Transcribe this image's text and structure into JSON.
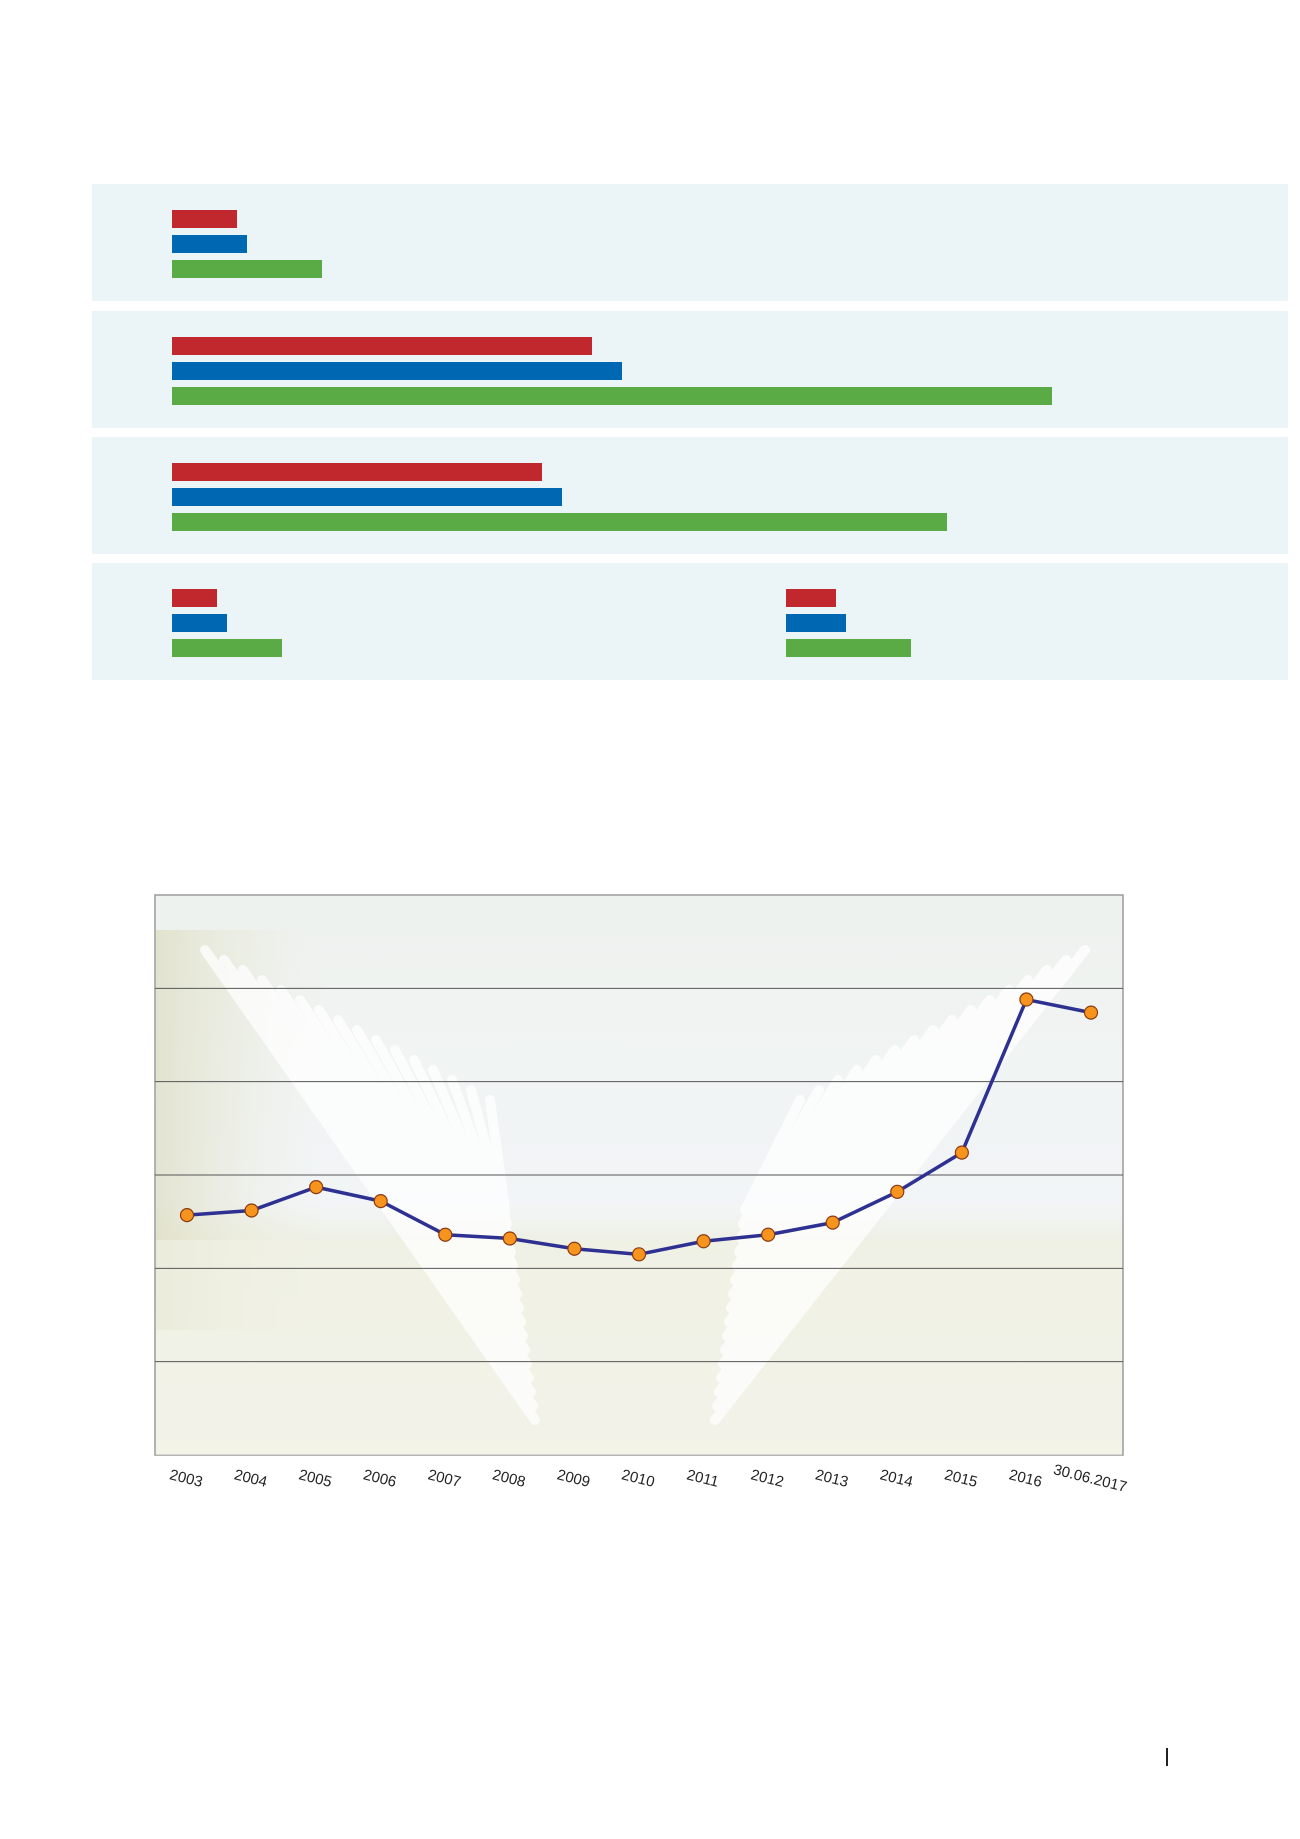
{
  "chart_data": [
    {
      "type": "bar",
      "orientation": "horizontal",
      "colors": [
        "#c0282d",
        "#0068b2",
        "#5aaa46"
      ],
      "panel_color": "#ebf5f8",
      "panels": [
        {
          "groups": [
            {
              "values": [
                65,
                75,
                150
              ]
            }
          ]
        },
        {
          "groups": [
            {
              "values": [
                420,
                450,
                880
              ]
            }
          ]
        },
        {
          "groups": [
            {
              "values": [
                370,
                390,
                775
              ]
            }
          ]
        },
        {
          "groups": [
            {
              "values": [
                45,
                55,
                110
              ]
            },
            {
              "values": [
                50,
                60,
                125
              ]
            }
          ]
        }
      ]
    },
    {
      "type": "line",
      "x": [
        "2003",
        "2004",
        "2005",
        "2006",
        "2007",
        "2008",
        "2009",
        "2010",
        "2011",
        "2012",
        "2013",
        "2014",
        "2015",
        "2016",
        "30.06.2017"
      ],
      "y": [
        2.57,
        2.62,
        2.87,
        2.72,
        2.36,
        2.32,
        2.21,
        2.15,
        2.29,
        2.36,
        2.49,
        2.82,
        3.24,
        4.88,
        4.74
      ],
      "ylim": [
        0,
        6
      ],
      "yticks": [
        0,
        1,
        2,
        3,
        4,
        5,
        6
      ],
      "grid": true,
      "line_color": "#2e3192",
      "marker_color": "#f7941d"
    }
  ]
}
